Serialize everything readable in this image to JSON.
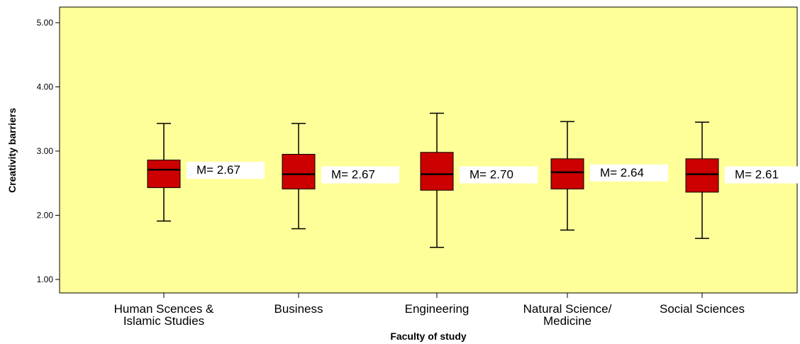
{
  "chart_data": {
    "type": "boxplot",
    "xlabel": "Faculty of study",
    "ylabel": "Creativity barriers",
    "ylim": [
      0.8,
      5.2
    ],
    "y_ticks": [
      "1.00",
      "2.00",
      "3.00",
      "4.00",
      "5.00"
    ],
    "y_tick_values": [
      1,
      2,
      3,
      4,
      5
    ],
    "grid": false,
    "background_color": "#ffff99",
    "box_color": "#cc0000",
    "categories": [
      [
        "Human Scences &",
        "Islamic Studies"
      ],
      [
        "Business"
      ],
      [
        "Engineering"
      ],
      [
        "Natural Science/",
        "Medicine"
      ],
      [
        "Social Sciences"
      ]
    ],
    "boxes": [
      {
        "min": 1.91,
        "q1": 2.43,
        "median": 2.71,
        "q3": 2.86,
        "max": 3.43,
        "mean_label": "M= 2.67"
      },
      {
        "min": 1.79,
        "q1": 2.41,
        "median": 2.64,
        "q3": 2.95,
        "max": 3.43,
        "mean_label": "M= 2.67"
      },
      {
        "min": 1.5,
        "q1": 2.39,
        "median": 2.64,
        "q3": 2.98,
        "max": 3.59,
        "mean_label": "M= 2.70"
      },
      {
        "min": 1.77,
        "q1": 2.41,
        "median": 2.67,
        "q3": 2.88,
        "max": 3.46,
        "mean_label": "M= 2.64"
      },
      {
        "min": 1.64,
        "q1": 2.36,
        "median": 2.64,
        "q3": 2.88,
        "max": 3.45,
        "mean_label": "M= 2.61"
      }
    ]
  }
}
